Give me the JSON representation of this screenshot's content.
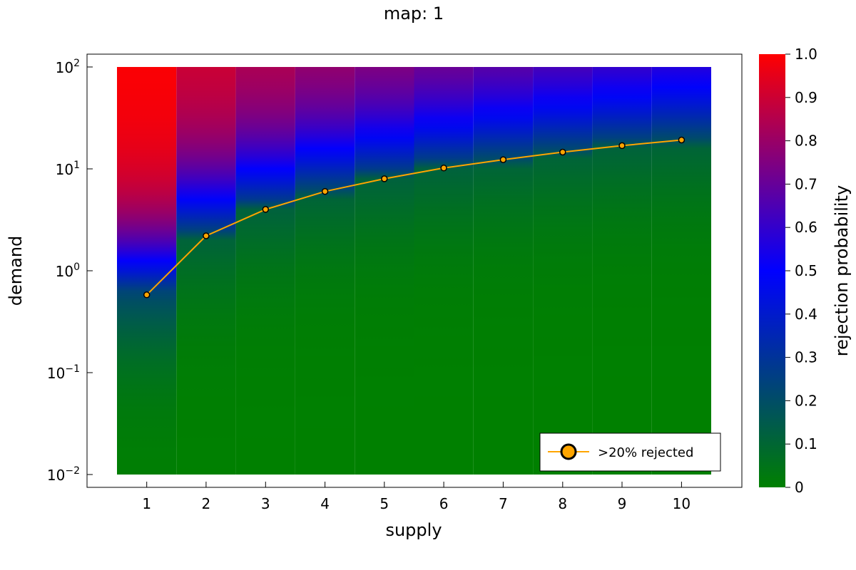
{
  "chart_data": {
    "type": "heatmap",
    "title": "map: 1",
    "xlabel": "supply",
    "ylabel": "demand",
    "colorbar_label": "rejection probability",
    "x": [
      1,
      2,
      3,
      4,
      5,
      6,
      7,
      8,
      9,
      10
    ],
    "x_ticks": [
      "1",
      "2",
      "3",
      "4",
      "5",
      "6",
      "7",
      "8",
      "9",
      "10"
    ],
    "y_scale": "log10",
    "y_range": [
      0.01,
      100
    ],
    "y_ticks": [
      {
        "value": 100,
        "base": "10",
        "exp": "2"
      },
      {
        "value": 10,
        "base": "10",
        "exp": "1"
      },
      {
        "value": 1,
        "base": "10",
        "exp": "0"
      },
      {
        "value": 0.1,
        "base": "10",
        "exp": "−1"
      },
      {
        "value": 0.01,
        "base": "10",
        "exp": "−2"
      }
    ],
    "colorbar_ticks": [
      "0",
      "0.1",
      "0.2",
      "0.3",
      "0.4",
      "0.5",
      "0.6",
      "0.7",
      "0.8",
      "0.9",
      "1.0"
    ],
    "colorbar_range": [
      0,
      1
    ],
    "colormap": [
      "#008000",
      "#0000ff",
      "#ff0000"
    ],
    "heatmap_columns": [
      {
        "supply": 1,
        "demand_at_p20": 0.58,
        "p_at_top": 1.0
      },
      {
        "supply": 2,
        "demand_at_p20": 2.2,
        "p_at_top": 0.92
      },
      {
        "supply": 3,
        "demand_at_p20": 4.0,
        "p_at_top": 0.88
      },
      {
        "supply": 4,
        "demand_at_p20": 6.0,
        "p_at_top": 0.85
      },
      {
        "supply": 5,
        "demand_at_p20": 8.0,
        "p_at_top": 0.83
      },
      {
        "supply": 6,
        "demand_at_p20": 10.2,
        "p_at_top": 0.81
      },
      {
        "supply": 7,
        "demand_at_p20": 12.3,
        "p_at_top": 0.79
      },
      {
        "supply": 8,
        "demand_at_p20": 14.6,
        "p_at_top": 0.77
      },
      {
        "supply": 9,
        "demand_at_p20": 16.9,
        "p_at_top": 0.75
      },
      {
        "supply": 10,
        "demand_at_p20": 19.2,
        "p_at_top": 0.73
      }
    ],
    "series": [
      {
        "name": ">20% rejected",
        "color": "#ffa500",
        "x": [
          1,
          2,
          3,
          4,
          5,
          6,
          7,
          8,
          9,
          10
        ],
        "y": [
          0.58,
          2.2,
          4.0,
          6.0,
          8.0,
          10.2,
          12.3,
          14.6,
          16.9,
          19.2
        ]
      }
    ],
    "legend_position": "bottom-right",
    "grid": false
  }
}
